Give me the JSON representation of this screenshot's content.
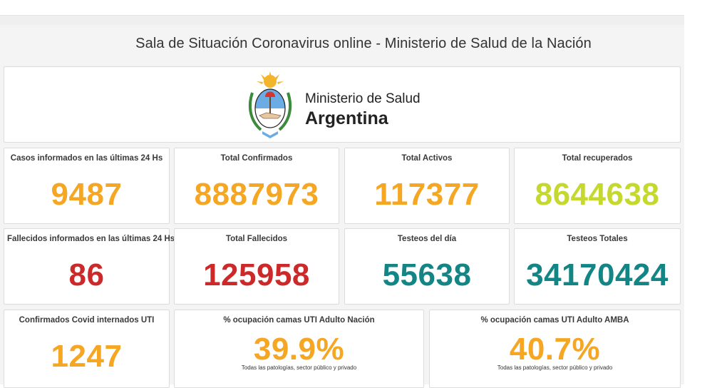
{
  "header": {
    "title": "Sala de Situación Coronavirus online - Ministerio de Salud de la Nación"
  },
  "logo": {
    "line1": "Ministerio de Salud",
    "line2": "Argentina",
    "seal_icon": "argentina-coat-of-arms-icon"
  },
  "colors": {
    "cases": "#f5a623",
    "recovered": "#c4d82e",
    "deaths": "#cc2a2a",
    "tests": "#138585"
  },
  "kpis": [
    {
      "label": "Casos informados en las últimas 24 Hs",
      "value": "9487"
    },
    {
      "label": "Total Confirmados",
      "value": "8887973"
    },
    {
      "label": "Total Activos",
      "value": "117377"
    },
    {
      "label": "Total recuperados",
      "value": "8644638"
    },
    {
      "label": "Fallecidos informados en las últimas 24 Hs",
      "value": "86"
    },
    {
      "label": "Total Fallecidos",
      "value": "125958"
    },
    {
      "label": "Testeos del día",
      "value": "55638"
    },
    {
      "label": "Testeos Totales",
      "value": "34170424"
    },
    {
      "label": "Confirmados Covid internados UTI",
      "value": "1247"
    },
    {
      "label": "% ocupación camas UTI Adulto Nación",
      "value": "39.9%",
      "note": "Todas las patologías, sector público y privado"
    },
    {
      "label": "% ocupación camas UTI Adulto AMBA",
      "value": "40.7%",
      "note": "Todas las patologías, sector público y privado"
    }
  ]
}
